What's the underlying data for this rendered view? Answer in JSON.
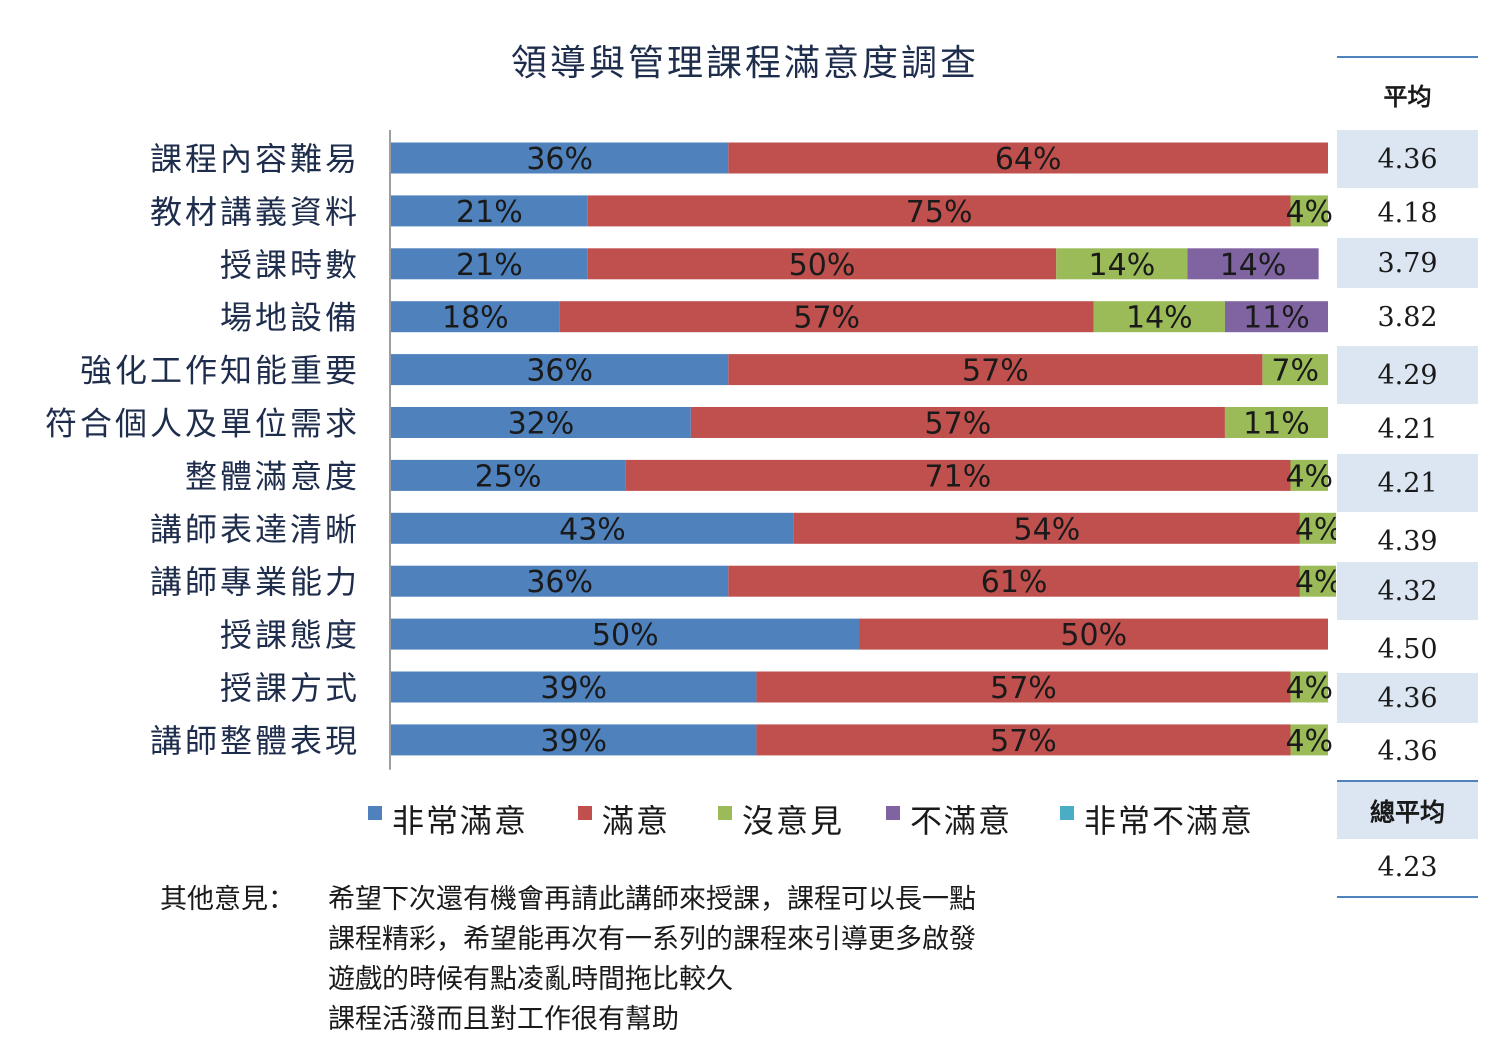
{
  "chart_data": {
    "type": "bar",
    "orientation": "horizontal-stacked-100",
    "title": "領導與管理課程滿意度調查",
    "categories": [
      "課程內容難易",
      "教材講義資料",
      "授課時數",
      "場地設備",
      "強化工作知能重要",
      "符合個人及單位需求",
      "整體滿意度",
      "講師表達清晰",
      "講師專業能力",
      "授課態度",
      "授課方式",
      "講師整體表現"
    ],
    "series": [
      {
        "name": "非常滿意",
        "color": "#4F81BD",
        "values": [
          36,
          21,
          21,
          18,
          36,
          32,
          25,
          43,
          36,
          50,
          39,
          39
        ]
      },
      {
        "name": "滿意",
        "color": "#C0504D",
        "values": [
          64,
          75,
          50,
          57,
          57,
          57,
          71,
          54,
          61,
          50,
          57,
          57
        ]
      },
      {
        "name": "沒意見",
        "color": "#9BBB59",
        "values": [
          0,
          4,
          14,
          14,
          7,
          11,
          4,
          4,
          4,
          0,
          4,
          4
        ]
      },
      {
        "name": "不滿意",
        "color": "#8064A2",
        "values": [
          0,
          0,
          14,
          11,
          0,
          0,
          0,
          0,
          0,
          0,
          0,
          0
        ]
      },
      {
        "name": "非常不滿意",
        "color": "#4BACC6",
        "values": [
          0,
          0,
          0,
          0,
          0,
          0,
          0,
          0,
          0,
          0,
          0,
          0
        ]
      }
    ],
    "value_suffix": "%",
    "xlim": [
      0,
      100
    ],
    "legend_position": "bottom"
  },
  "averages": {
    "header": "平均",
    "values": [
      "4.36",
      "4.18",
      "3.79",
      "3.82",
      "4.29",
      "4.21",
      "4.21",
      "4.39",
      "4.32",
      "4.50",
      "4.36",
      "4.36"
    ]
  },
  "overall": {
    "header": "總平均",
    "value": "4.23"
  },
  "comments": {
    "label": "其他意見：",
    "lines": [
      "希望下次還有機會再請此講師來授課，課程可以長一點",
      "課程精彩，希望能再次有一系列的課程來引導更多啟發",
      "遊戲的時候有點凌亂時間拖比較久",
      "課程活潑而且對工作很有幫助"
    ]
  }
}
